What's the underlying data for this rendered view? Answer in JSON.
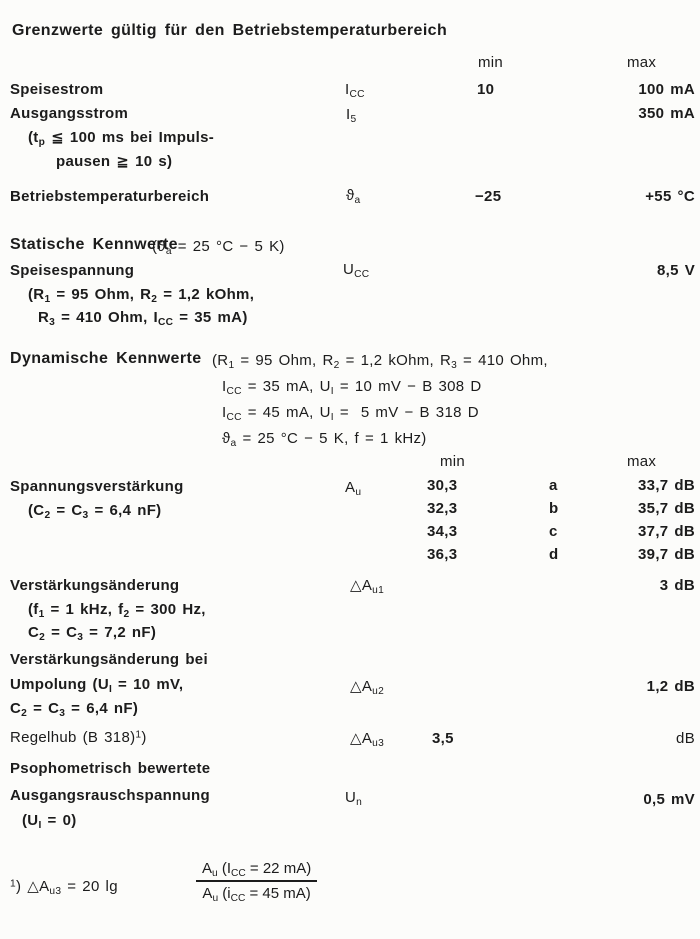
{
  "colors": {
    "paper": "#fcfcfa",
    "ink": "#1c1c1c"
  },
  "limits": {
    "title": "Grenzwerte gültig für den Betriebstemperaturbereich",
    "header": {
      "min": "min",
      "max": "max"
    },
    "rows": [
      {
        "label": "Speisestrom",
        "symbol": "I_{CC}",
        "min": "10",
        "max": "100 mA"
      },
      {
        "label": "Ausgangsstrom",
        "symbol": "I_{5}",
        "max": "350 mA",
        "condition": [
          "(t_{p} ≦ 100 ms bei Impuls-",
          "pausen ≧ 10 s)"
        ]
      },
      {
        "label": "Betriebstemperaturbereich",
        "symbol": "ϑ_{a}",
        "min": "−25",
        "max": "+55 °C"
      }
    ]
  },
  "statik": {
    "heading": "Statische Kennwerte",
    "condition_inline": "(ϑ_{a} = 25 °C − 5 K)",
    "row": {
      "label": "Speisespannung",
      "symbol": "U_{CC}",
      "max": "8,5 V"
    },
    "condition": [
      "(R_{1} = 95 Ohm, R_{2} = 1,2 kOhm,",
      "R_{3} = 410 Ohm, I_{CC} = 35 mA)"
    ]
  },
  "dynamik": {
    "heading": "Dynamische Kennwerte",
    "condition": [
      "(R_{1} = 95 Ohm, R_{2} = 1,2 kOhm, R_{3} = 410 Ohm,",
      "I_{CC} = 35 mA, U_{I} = 10 mV − B 308 D",
      "I_{CC} = 45 mA, U_{I} =  5 mV − B 318 D",
      "ϑ_{a} = 25 °C − 5 K, f = 1 kHz)"
    ],
    "header": {
      "min": "min",
      "max": "max"
    },
    "gain": {
      "label": "Spannungsverstärkung",
      "condition": "(C_{2} = C_{3} = 6,4 nF)",
      "symbol": "A_{u}",
      "variants": [
        {
          "min": "30,3",
          "group": "a",
          "max": "33,7 dB"
        },
        {
          "min": "32,3",
          "group": "b",
          "max": "35,7 dB"
        },
        {
          "min": "34,3",
          "group": "c",
          "max": "37,7 dB"
        },
        {
          "min": "36,3",
          "group": "d",
          "max": "39,7 dB"
        }
      ]
    },
    "rows": [
      {
        "label": "Verstärkungsänderung",
        "condition": [
          "(f_{1} = 1 kHz, f_{2} = 300 Hz,",
          "C_{2} = C_{3} = 7,2 nF)"
        ],
        "symbol": "△A_{u1}",
        "max": "3 dB"
      },
      {
        "label_lines": [
          "Verstärkungsänderung bei",
          "Umpolung (U_{I} = 10 mV,",
          "C_{2} = C_{3} = 6,4 nF)"
        ],
        "symbol": "△A_{u2}",
        "max": "1,2 dB"
      },
      {
        "label": "Regelhub (B 318)^{1})",
        "symbol": "△A_{u3}",
        "min": "3,5",
        "max": "dB"
      },
      {
        "label_lines": [
          "Psophometrisch bewertete",
          "Ausgangsrauschspannung",
          "(U_{I} = 0)"
        ],
        "symbol": "U_{n}",
        "max": "0,5 mV"
      }
    ]
  },
  "footnote": {
    "prefix": "^{1}) △A_{u3} = 20 lg",
    "numerator": "A_{u} (I_{CC} = 22 mA)",
    "denominator": "A_{u} (i_{CC} = 45 mA)"
  }
}
